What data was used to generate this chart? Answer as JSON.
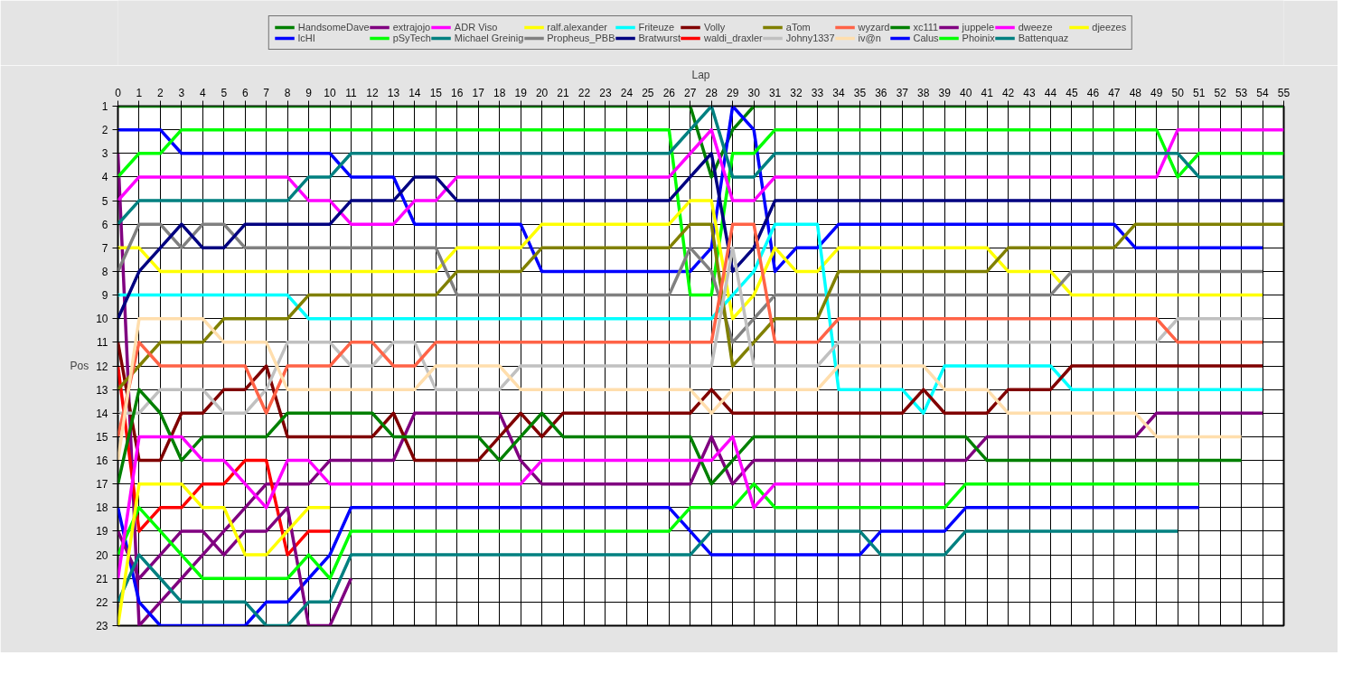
{
  "chart_data": {
    "type": "line",
    "xlabel": "Lap",
    "ylabel": "Pos",
    "x": [
      0,
      1,
      2,
      3,
      4,
      5,
      6,
      7,
      8,
      9,
      10,
      11,
      12,
      13,
      14,
      15,
      16,
      17,
      18,
      19,
      20,
      21,
      22,
      23,
      24,
      25,
      26,
      27,
      28,
      29,
      30,
      31,
      32,
      33,
      34,
      35,
      36,
      37,
      38,
      39,
      40,
      41,
      42,
      43,
      44,
      45,
      46,
      47,
      48,
      49,
      50,
      51,
      52,
      53,
      54,
      55
    ],
    "xlim": [
      0,
      55
    ],
    "xticks": [
      0,
      1,
      2,
      3,
      4,
      5,
      6,
      7,
      8,
      9,
      10,
      11,
      12,
      13,
      14,
      15,
      16,
      17,
      18,
      19,
      20,
      21,
      22,
      23,
      24,
      25,
      26,
      27,
      28,
      29,
      30,
      31,
      32,
      33,
      34,
      35,
      36,
      37,
      38,
      39,
      40,
      41,
      42,
      43,
      44,
      45,
      46,
      47,
      48,
      49,
      50,
      51,
      52,
      53,
      54,
      55
    ],
    "ylim": [
      23,
      1
    ],
    "yticks": [
      1,
      2,
      3,
      4,
      5,
      6,
      7,
      8,
      9,
      10,
      11,
      12,
      13,
      14,
      15,
      16,
      17,
      18,
      19,
      20,
      21,
      22,
      23
    ],
    "grid": true,
    "legend": "top",
    "marker": "none",
    "line_style": "solid",
    "series": [
      {
        "name": "HandsomeDave",
        "color": "#008000",
        "values": [
          1,
          1,
          1,
          1,
          1,
          1,
          1,
          1,
          1,
          1,
          1,
          1,
          1,
          1,
          1,
          1,
          1,
          1,
          1,
          1,
          1,
          1,
          1,
          1,
          1,
          1,
          1,
          1,
          4,
          2,
          1,
          1,
          1,
          1,
          1,
          1,
          1,
          1,
          1,
          1,
          1,
          1,
          1,
          1,
          1,
          1,
          1,
          1,
          1,
          1,
          1,
          1,
          1,
          1,
          1,
          1
        ]
      },
      {
        "name": "lcHI",
        "color": "#0000ff",
        "values": [
          2,
          2,
          2,
          3,
          3,
          3,
          3,
          3,
          3,
          3,
          3,
          4,
          4,
          4,
          6,
          6,
          6,
          6,
          6,
          6,
          8,
          8,
          8,
          8,
          8,
          8,
          8,
          8,
          7,
          1,
          2,
          8,
          7,
          7,
          6,
          6,
          6,
          6,
          6,
          6,
          6,
          6,
          6,
          6,
          6,
          6,
          6,
          6,
          7,
          7,
          7,
          7,
          7,
          7,
          7,
          null
        ]
      },
      {
        "name": "extrajojo",
        "color": "#800080",
        "values": [
          3,
          23,
          22,
          21,
          20,
          19,
          18,
          17,
          17,
          17,
          16,
          16,
          16,
          16,
          14,
          14,
          14,
          14,
          14,
          16,
          17,
          17,
          17,
          17,
          17,
          17,
          17,
          17,
          15,
          17,
          16,
          16,
          16,
          16,
          16,
          16,
          16,
          16,
          16,
          16,
          16,
          15,
          15,
          15,
          15,
          15,
          15,
          15,
          15,
          14,
          14,
          14,
          14,
          14,
          14,
          null
        ]
      },
      {
        "name": "pSyTech",
        "color": "#00ff00",
        "values": [
          4,
          3,
          3,
          2,
          2,
          2,
          2,
          2,
          2,
          2,
          2,
          2,
          2,
          2,
          2,
          2,
          2,
          2,
          2,
          2,
          2,
          2,
          2,
          2,
          2,
          2,
          2,
          9,
          9,
          3,
          3,
          2,
          2,
          2,
          2,
          2,
          2,
          2,
          2,
          2,
          2,
          2,
          2,
          2,
          2,
          2,
          2,
          2,
          2,
          2,
          4,
          3,
          3,
          3,
          3,
          3
        ]
      },
      {
        "name": "ADR Viso",
        "color": "#ff00ff",
        "values": [
          5,
          4,
          4,
          4,
          4,
          4,
          4,
          4,
          4,
          5,
          5,
          6,
          6,
          6,
          5,
          5,
          4,
          4,
          4,
          4,
          4,
          4,
          4,
          4,
          4,
          4,
          4,
          3,
          2,
          5,
          5,
          4,
          4,
          4,
          4,
          4,
          4,
          4,
          4,
          4,
          4,
          4,
          4,
          4,
          4,
          4,
          4,
          4,
          4,
          4,
          2,
          2,
          2,
          2,
          2,
          2
        ]
      },
      {
        "name": "Michael Greinig",
        "color": "#008080",
        "values": [
          6,
          5,
          5,
          5,
          5,
          5,
          5,
          5,
          5,
          4,
          4,
          3,
          3,
          3,
          3,
          3,
          3,
          3,
          3,
          3,
          3,
          3,
          3,
          3,
          3,
          3,
          3,
          2,
          1,
          4,
          4,
          3,
          3,
          3,
          3,
          3,
          3,
          3,
          3,
          3,
          3,
          3,
          3,
          3,
          3,
          3,
          3,
          3,
          3,
          3,
          3,
          4,
          4,
          4,
          4,
          4
        ]
      },
      {
        "name": "ralf.alexander",
        "color": "#ffff00",
        "values": [
          7,
          7,
          8,
          8,
          8,
          8,
          8,
          8,
          8,
          8,
          8,
          8,
          8,
          8,
          8,
          8,
          7,
          7,
          7,
          7,
          6,
          6,
          6,
          6,
          6,
          6,
          6,
          5,
          5,
          10,
          9,
          7,
          8,
          8,
          7,
          7,
          7,
          7,
          7,
          7,
          7,
          7,
          8,
          8,
          8,
          9,
          9,
          9,
          9,
          9,
          9,
          9,
          9,
          9,
          9,
          null
        ]
      },
      {
        "name": "Propheus_PBB",
        "color": "#808080",
        "values": [
          8,
          6,
          6,
          7,
          6,
          6,
          7,
          7,
          7,
          7,
          7,
          7,
          7,
          7,
          7,
          7,
          9,
          9,
          9,
          9,
          9,
          9,
          9,
          9,
          9,
          9,
          9,
          7,
          8,
          11,
          10,
          9,
          9,
          9,
          9,
          9,
          9,
          9,
          9,
          9,
          9,
          9,
          9,
          9,
          9,
          8,
          8,
          8,
          8,
          8,
          8,
          8,
          8,
          8,
          8,
          null
        ]
      },
      {
        "name": "Friteuze",
        "color": "#00ffff",
        "values": [
          9,
          9,
          9,
          9,
          9,
          9,
          9,
          9,
          9,
          10,
          10,
          10,
          10,
          10,
          10,
          10,
          10,
          10,
          10,
          10,
          10,
          10,
          10,
          10,
          10,
          10,
          10,
          10,
          10,
          9,
          8,
          6,
          6,
          6,
          13,
          13,
          13,
          13,
          14,
          12,
          12,
          12,
          12,
          12,
          12,
          13,
          13,
          13,
          13,
          13,
          13,
          13,
          13,
          13,
          13,
          null
        ]
      },
      {
        "name": "Bratwurst",
        "color": "#000080",
        "values": [
          10,
          8,
          7,
          6,
          7,
          7,
          6,
          6,
          6,
          6,
          6,
          5,
          5,
          5,
          4,
          4,
          5,
          5,
          5,
          5,
          5,
          5,
          5,
          5,
          5,
          5,
          5,
          4,
          3,
          8,
          7,
          5,
          5,
          5,
          5,
          5,
          5,
          5,
          5,
          5,
          5,
          5,
          5,
          5,
          5,
          5,
          5,
          5,
          5,
          5,
          5,
          5,
          5,
          5,
          5,
          5
        ]
      },
      {
        "name": "Volly",
        "color": "#800000",
        "values": [
          11,
          16,
          16,
          14,
          14,
          13,
          13,
          12,
          15,
          15,
          15,
          15,
          15,
          14,
          16,
          16,
          16,
          16,
          15,
          14,
          15,
          14,
          14,
          14,
          14,
          14,
          14,
          14,
          13,
          14,
          14,
          14,
          14,
          14,
          14,
          14,
          14,
          14,
          13,
          14,
          14,
          14,
          13,
          13,
          13,
          12,
          12,
          12,
          12,
          12,
          12,
          12,
          12,
          12,
          12,
          null
        ]
      },
      {
        "name": "waldi_draxler",
        "color": "#ff0000",
        "values": [
          12,
          19,
          18,
          18,
          17,
          17,
          16,
          16,
          20,
          19,
          19,
          null,
          null,
          null,
          null,
          null,
          null,
          null,
          null,
          null,
          null,
          null,
          null,
          null,
          null,
          null,
          null,
          null,
          null,
          null,
          null,
          null,
          null,
          null,
          null,
          null,
          null,
          null,
          null,
          null,
          null,
          null,
          null,
          null,
          null,
          null,
          null,
          null,
          null,
          null,
          null,
          null,
          null,
          null,
          null,
          null
        ]
      },
      {
        "name": "aTom",
        "color": "#808000",
        "values": [
          13,
          12,
          11,
          11,
          11,
          10,
          10,
          10,
          10,
          9,
          9,
          9,
          9,
          9,
          9,
          9,
          8,
          8,
          8,
          8,
          7,
          7,
          7,
          7,
          7,
          7,
          7,
          6,
          6,
          12,
          11,
          10,
          10,
          10,
          8,
          8,
          8,
          8,
          8,
          8,
          8,
          8,
          7,
          7,
          7,
          7,
          7,
          7,
          6,
          6,
          6,
          6,
          6,
          6,
          6,
          6
        ]
      },
      {
        "name": "Johny1337",
        "color": "#c0c0c0",
        "values": [
          14,
          14,
          13,
          13,
          13,
          14,
          14,
          13,
          11,
          11,
          11,
          12,
          12,
          11,
          11,
          13,
          13,
          13,
          13,
          12,
          12,
          12,
          12,
          12,
          12,
          12,
          12,
          12,
          12,
          7,
          12,
          12,
          12,
          12,
          11,
          11,
          11,
          11,
          11,
          11,
          11,
          11,
          11,
          11,
          11,
          11,
          11,
          11,
          11,
          11,
          10,
          10,
          10,
          10,
          10,
          null
        ]
      },
      {
        "name": "wyzard",
        "color": "#ff6347",
        "values": [
          15,
          11,
          12,
          12,
          12,
          12,
          12,
          14,
          12,
          12,
          12,
          11,
          11,
          12,
          12,
          11,
          11,
          11,
          11,
          11,
          11,
          11,
          11,
          11,
          11,
          11,
          11,
          11,
          11,
          6,
          6,
          11,
          11,
          11,
          10,
          10,
          10,
          10,
          10,
          10,
          10,
          10,
          10,
          10,
          10,
          10,
          10,
          10,
          10,
          10,
          11,
          11,
          11,
          11,
          11,
          null
        ]
      },
      {
        "name": "iv@n",
        "color": "#ffdead",
        "values": [
          16,
          10,
          10,
          10,
          10,
          11,
          11,
          11,
          13,
          13,
          13,
          13,
          13,
          13,
          13,
          12,
          12,
          12,
          12,
          13,
          13,
          13,
          13,
          13,
          13,
          13,
          13,
          13,
          14,
          13,
          13,
          13,
          13,
          13,
          12,
          12,
          12,
          12,
          12,
          13,
          13,
          13,
          14,
          14,
          14,
          14,
          14,
          14,
          14,
          15,
          15,
          15,
          15,
          15,
          null,
          null
        ]
      },
      {
        "name": "xc111",
        "color": "#008000",
        "values": [
          17,
          13,
          14,
          16,
          15,
          15,
          15,
          15,
          14,
          14,
          14,
          14,
          14,
          15,
          15,
          15,
          15,
          15,
          16,
          15,
          14,
          15,
          15,
          15,
          15,
          15,
          15,
          15,
          17,
          16,
          15,
          15,
          15,
          15,
          15,
          15,
          15,
          15,
          15,
          15,
          15,
          16,
          16,
          16,
          16,
          16,
          16,
          16,
          16,
          16,
          16,
          16,
          16,
          16,
          null,
          null
        ]
      },
      {
        "name": "Calus",
        "color": "#0000ff",
        "values": [
          18,
          22,
          23,
          23,
          23,
          23,
          23,
          22,
          22,
          21,
          20,
          18,
          18,
          18,
          18,
          18,
          18,
          18,
          18,
          18,
          18,
          18,
          18,
          18,
          18,
          18,
          18,
          19,
          20,
          20,
          20,
          20,
          20,
          20,
          20,
          20,
          19,
          19,
          19,
          19,
          18,
          18,
          18,
          18,
          18,
          18,
          18,
          18,
          18,
          18,
          18,
          18,
          null,
          null,
          null,
          null
        ]
      },
      {
        "name": "juppele",
        "color": "#800080",
        "values": [
          19,
          21,
          20,
          19,
          19,
          20,
          19,
          19,
          18,
          23,
          23,
          21,
          null,
          null,
          null,
          null,
          null,
          null,
          null,
          null,
          null,
          null,
          null,
          null,
          null,
          null,
          null,
          null,
          null,
          null,
          null,
          null,
          null,
          null,
          null,
          null,
          null,
          null,
          null,
          null,
          null,
          null,
          null,
          null,
          null,
          null,
          null,
          null,
          null,
          null,
          null,
          null,
          null,
          null,
          null,
          null
        ]
      },
      {
        "name": "Phoinix",
        "color": "#00ff00",
        "values": [
          20,
          18,
          19,
          20,
          21,
          21,
          21,
          21,
          21,
          20,
          21,
          19,
          19,
          19,
          19,
          19,
          19,
          19,
          19,
          19,
          19,
          19,
          19,
          19,
          19,
          19,
          19,
          18,
          18,
          18,
          17,
          18,
          18,
          18,
          18,
          18,
          18,
          18,
          18,
          18,
          17,
          17,
          17,
          17,
          17,
          17,
          17,
          17,
          17,
          17,
          17,
          17,
          null,
          null,
          null,
          null
        ]
      },
      {
        "name": "dweeze",
        "color": "#ff00ff",
        "values": [
          21,
          15,
          15,
          15,
          16,
          16,
          17,
          18,
          16,
          16,
          17,
          17,
          17,
          17,
          17,
          17,
          17,
          17,
          17,
          17,
          16,
          16,
          16,
          16,
          16,
          16,
          16,
          16,
          16,
          15,
          18,
          17,
          17,
          17,
          17,
          17,
          17,
          17,
          17,
          17,
          null,
          null,
          null,
          null,
          null,
          null,
          null,
          null,
          null,
          null,
          null,
          null,
          null,
          null,
          null,
          null
        ]
      },
      {
        "name": "Battenquaz",
        "color": "#008080",
        "values": [
          22,
          20,
          21,
          22,
          22,
          22,
          22,
          23,
          23,
          22,
          22,
          20,
          20,
          20,
          20,
          20,
          20,
          20,
          20,
          20,
          20,
          20,
          20,
          20,
          20,
          20,
          20,
          20,
          19,
          19,
          19,
          19,
          19,
          19,
          19,
          19,
          20,
          20,
          20,
          20,
          19,
          19,
          19,
          19,
          19,
          19,
          19,
          19,
          19,
          19,
          19,
          null,
          null,
          null,
          null,
          null
        ]
      },
      {
        "name": "djeezes",
        "color": "#ffff00",
        "values": [
          23,
          17,
          17,
          17,
          18,
          18,
          20,
          20,
          19,
          18,
          18,
          null,
          null,
          null,
          null,
          null,
          null,
          null,
          null,
          null,
          null,
          null,
          null,
          null,
          null,
          null,
          null,
          null,
          null,
          null,
          null,
          null,
          null,
          null,
          null,
          null,
          null,
          null,
          null,
          null,
          null,
          null,
          null,
          null,
          null,
          null,
          null,
          null,
          null,
          null,
          null,
          null,
          null,
          null,
          null,
          null
        ]
      }
    ]
  }
}
